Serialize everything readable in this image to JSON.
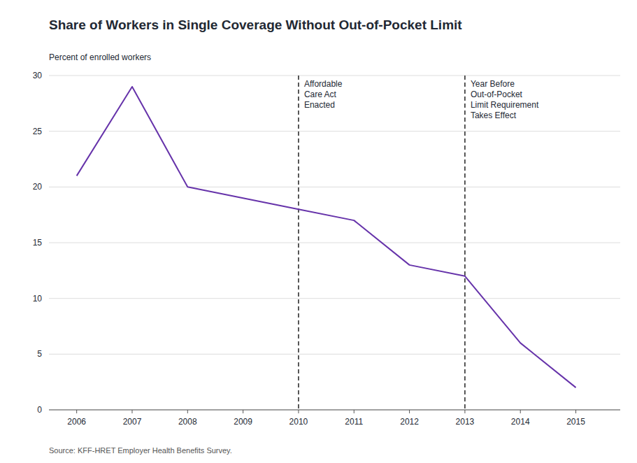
{
  "chart_data": {
    "type": "line",
    "title": "Share of Workers in Single Coverage Without Out-of-Pocket Limit",
    "y_label": "Percent of enrolled workers",
    "source": "Source: KFF-HRET Employer Health Benefits Survey.",
    "x": [
      2006,
      2007,
      2008,
      2009,
      2010,
      2011,
      2012,
      2013,
      2014,
      2015
    ],
    "values": [
      21,
      29,
      20,
      19,
      18,
      17,
      13,
      12,
      6,
      2
    ],
    "color": "#6633AA",
    "annotations": [
      {
        "x": 2010,
        "text": "Affordable\nCare Act\nEnacted"
      },
      {
        "x": 2013,
        "text": "Year Before\nOut-of-Pocket\nLimit Requirement\nTakes Effect"
      }
    ],
    "xlim": [
      2005.5,
      2015.8
    ],
    "ylim": [
      0,
      30
    ],
    "xticks": [
      2006,
      2007,
      2008,
      2009,
      2010,
      2011,
      2012,
      2013,
      2014,
      2015
    ],
    "yticks": [
      0,
      5,
      10,
      15,
      20,
      25,
      30
    ],
    "grid": true
  }
}
